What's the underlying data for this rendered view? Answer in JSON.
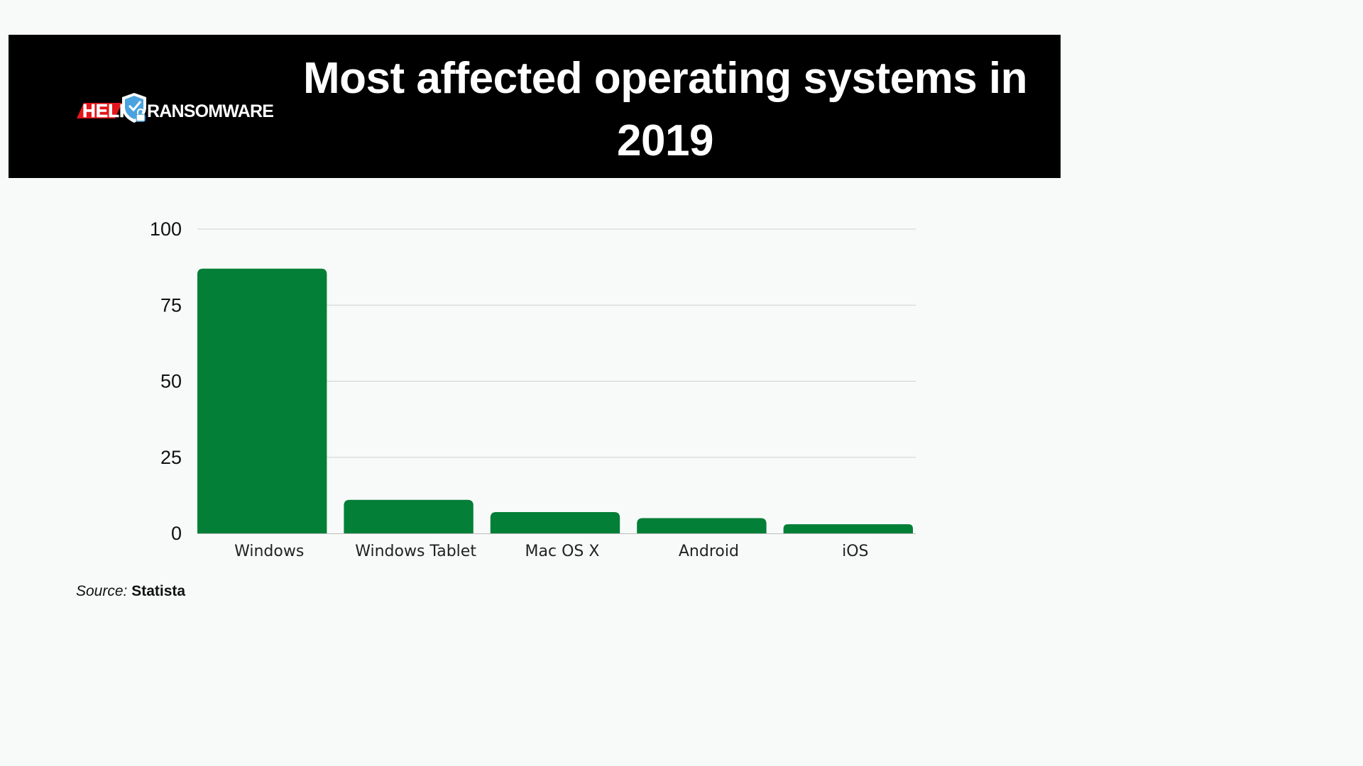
{
  "header": {
    "title": "Most affected operating systems in 2019",
    "logo": {
      "text_left": "HELP",
      "text_right": "RANSOMWARE",
      "icon": "shield-lock-icon",
      "colors": {
        "red": "#e3161b",
        "shield": "#4aa3df",
        "white": "#ffffff"
      }
    }
  },
  "chart_data": {
    "type": "bar",
    "title": "Most affected operating systems in 2019",
    "categories": [
      "Windows",
      "Windows Tablet",
      "Mac OS X",
      "Android",
      "iOS"
    ],
    "values": [
      87,
      11,
      7,
      5,
      3
    ],
    "xlabel": "",
    "ylabel": "",
    "ylim": [
      0,
      100
    ],
    "yticks": [
      0,
      25,
      50,
      75,
      100
    ],
    "grid": true,
    "bar_color": "#047f37"
  },
  "source": {
    "label": "Source:",
    "value": "Statista"
  }
}
